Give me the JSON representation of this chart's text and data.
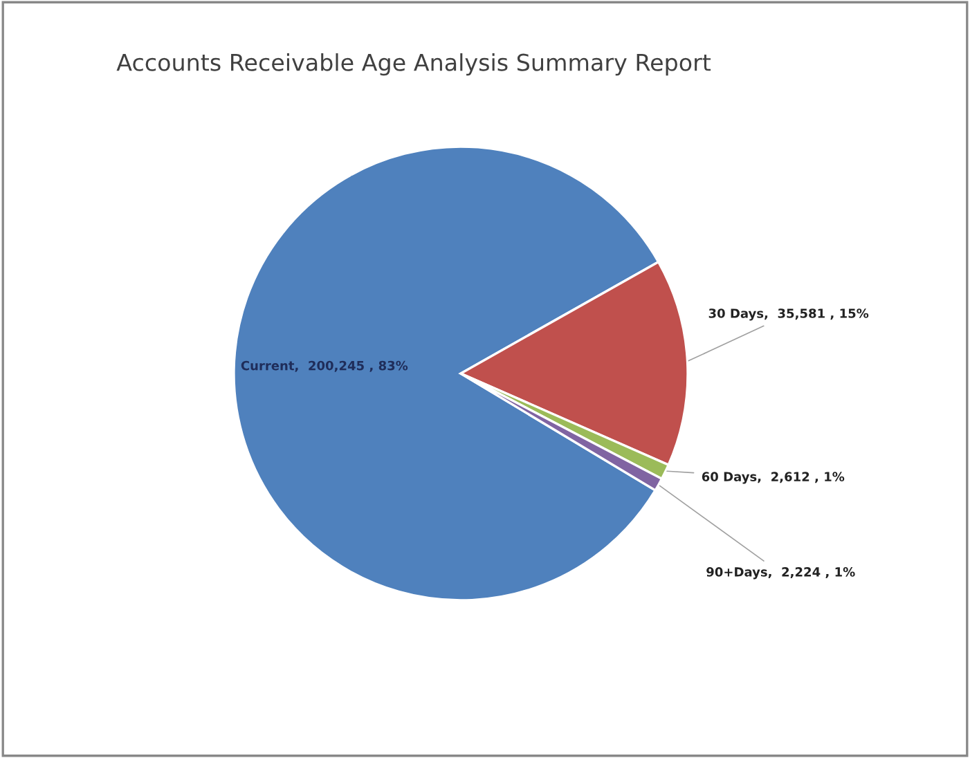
{
  "chart_data": {
    "type": "pie",
    "title": "Accounts Receivable Age Analysis Summary Report",
    "categories": [
      "Current",
      "30 Days",
      "60 Days",
      "90+Days"
    ],
    "values": [
      200245,
      35581,
      2612,
      2224
    ],
    "colors": [
      "#4f81bd",
      "#c0504d",
      "#9bbb59",
      "#8064a2"
    ],
    "value_labels": [
      "200,245 , 83%",
      "35,581 , 15%",
      "2,612 , 1%",
      "2,224 , 1%"
    ],
    "legend": false
  }
}
